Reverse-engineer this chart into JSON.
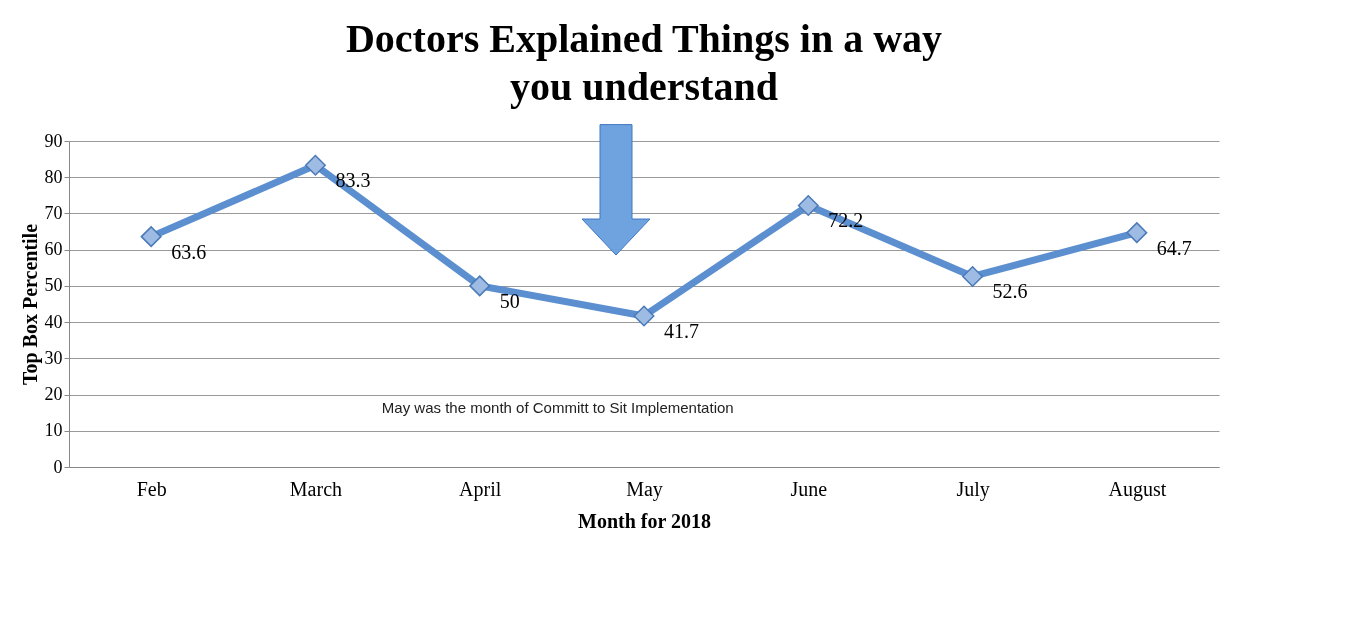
{
  "chart_data": {
    "type": "line",
    "title": "Doctors Explained Things in a way you understand",
    "xlabel": "Month for 2018",
    "ylabel": "Top Box Percentile",
    "categories": [
      "Feb",
      "March",
      "April",
      "May",
      "June",
      "July",
      "August"
    ],
    "series": [
      {
        "color": "#5b8fcf",
        "values": [
          63.6,
          83.3,
          50,
          41.7,
          72.2,
          52.6,
          64.7
        ]
      }
    ],
    "ylim": [
      0,
      90
    ],
    "yticks": [
      0,
      10,
      20,
      30,
      40,
      50,
      60,
      70,
      80,
      90
    ],
    "grid": "y",
    "marker": "diamond",
    "data_labels": true,
    "annotations": [
      "May was the month of Committ to Sit Implementation"
    ]
  }
}
